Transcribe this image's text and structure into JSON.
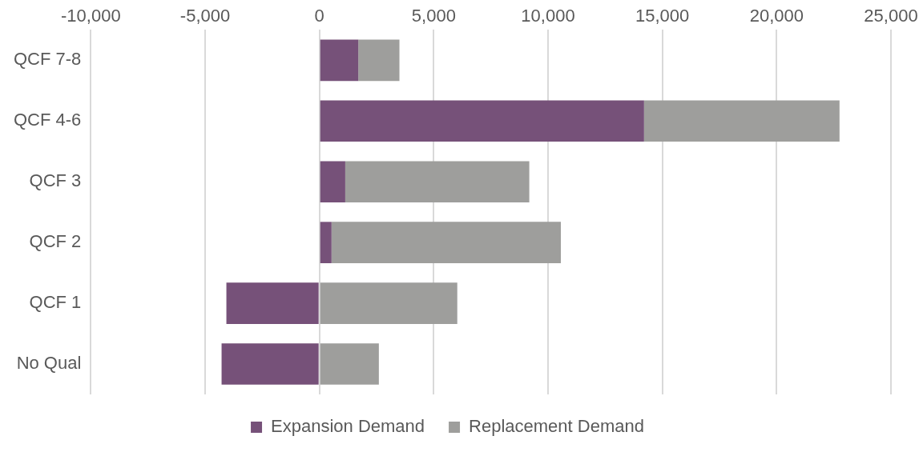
{
  "chart_data": {
    "type": "bar",
    "orientation": "horizontal",
    "stacked": true,
    "categories": [
      "QCF 7-8",
      "QCF 4-6",
      "QCF 3",
      "QCF 2",
      "QCF 1",
      "No Qual"
    ],
    "series": [
      {
        "name": "Expansion Demand",
        "color": "#765179",
        "values": [
          1700,
          14200,
          1130,
          530,
          -4070,
          -4280
        ]
      },
      {
        "name": "Replacement Demand",
        "color": "#9e9e9c",
        "values": [
          1800,
          8550,
          8050,
          10030,
          6030,
          2600
        ]
      }
    ],
    "xlim": [
      -10000,
      25000
    ],
    "xticks": [
      {
        "value": -10000,
        "label": "-10,000"
      },
      {
        "value": -5000,
        "label": "-5,000"
      },
      0,
      {
        "value": 5000,
        "label": "5,000"
      },
      {
        "value": 10000,
        "label": "10,000"
      },
      {
        "value": 15000,
        "label": "15,000"
      },
      {
        "value": 20000,
        "label": "20,000"
      },
      {
        "value": 25000,
        "label": "25,000"
      }
    ],
    "grid": "x",
    "legend": "bottom"
  }
}
